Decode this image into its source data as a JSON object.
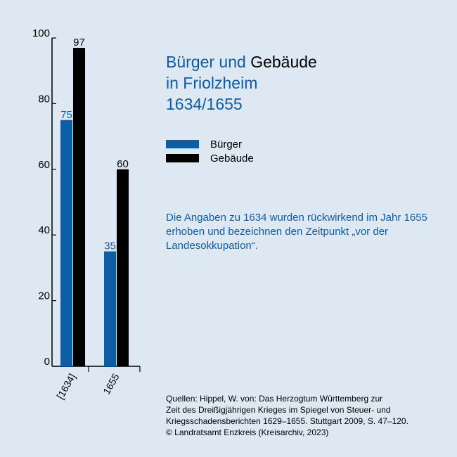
{
  "title": {
    "line1_blue": "Bürger und",
    "line1_black": "Gebäude",
    "line2": "in Friolzheim",
    "line3": "1634/1655"
  },
  "legend": {
    "items": [
      {
        "label": "Bürger",
        "color": "#0d5ca6"
      },
      {
        "label": "Gebäude",
        "color": "#000000"
      }
    ]
  },
  "note": "Die Angaben zu 1634 wurden rückwirkend im Jahr 1655 erhoben und bezeichnen den Zeitpunkt „vor der Landesokkupation“.",
  "sources": {
    "line1": "Quellen: Hippel, W. von: Das Herzogtum Württemberg zur",
    "line2": "Zeit des Dreißigjährigen Krieges im Spiegel von Steuer- und",
    "line3": "Kriegsschadensberichten 1629–1655. Stuttgart 2009, S. 47–120.",
    "line4": "© Landratsamt Enzkreis (Kreisarchiv, 2023)"
  },
  "chart_data": {
    "type": "bar",
    "categories": [
      "[1634]",
      "1655"
    ],
    "series": [
      {
        "name": "Bürger",
        "values": [
          75,
          35
        ],
        "color": "#0d5ca6"
      },
      {
        "name": "Gebäude",
        "values": [
          97,
          60
        ],
        "color": "#000000"
      }
    ],
    "yticks": [
      0,
      20,
      40,
      60,
      80,
      100
    ],
    "ylim": [
      0,
      100
    ],
    "grid": false,
    "legend_position": "right"
  }
}
